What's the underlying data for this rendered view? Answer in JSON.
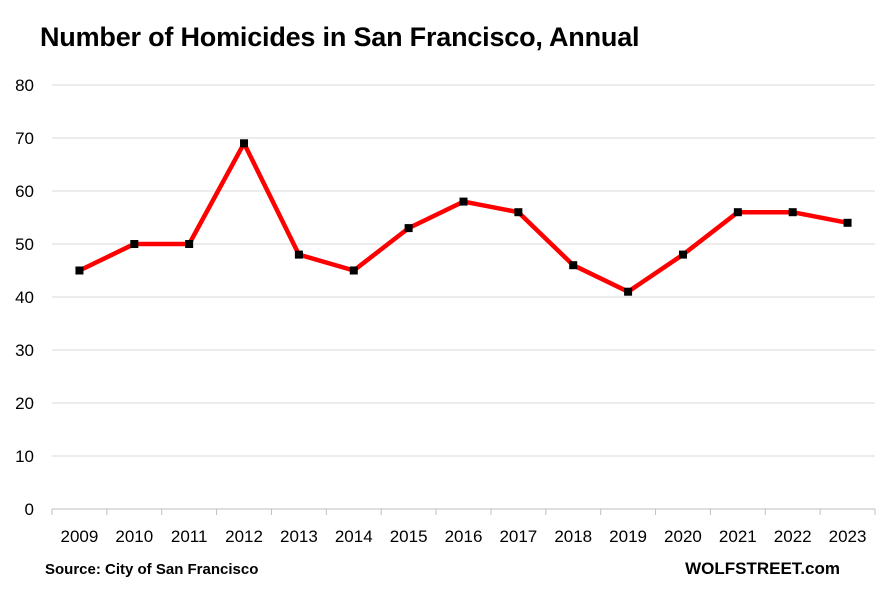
{
  "chart_data": {
    "type": "line",
    "title": "Number of Homicides in San Francisco, Annual",
    "xlabel": "",
    "ylabel": "",
    "categories": [
      "2009",
      "2010",
      "2011",
      "2012",
      "2013",
      "2014",
      "2015",
      "2016",
      "2017",
      "2018",
      "2019",
      "2020",
      "2021",
      "2022",
      "2023"
    ],
    "series": [
      {
        "values": [
          45,
          50,
          50,
          69,
          48,
          45,
          53,
          58,
          56,
          46,
          41,
          48,
          56,
          56,
          54
        ],
        "color": "#ff0000",
        "marker_color": "#000000"
      }
    ],
    "ylim": [
      0,
      80
    ],
    "yticks": [
      "0",
      "10",
      "20",
      "30",
      "40",
      "50",
      "60",
      "70",
      "80"
    ],
    "grid": "horizontal",
    "legend": "none",
    "source": "Source: City of San Francisco",
    "brand": "WOLFSTREET.com"
  }
}
